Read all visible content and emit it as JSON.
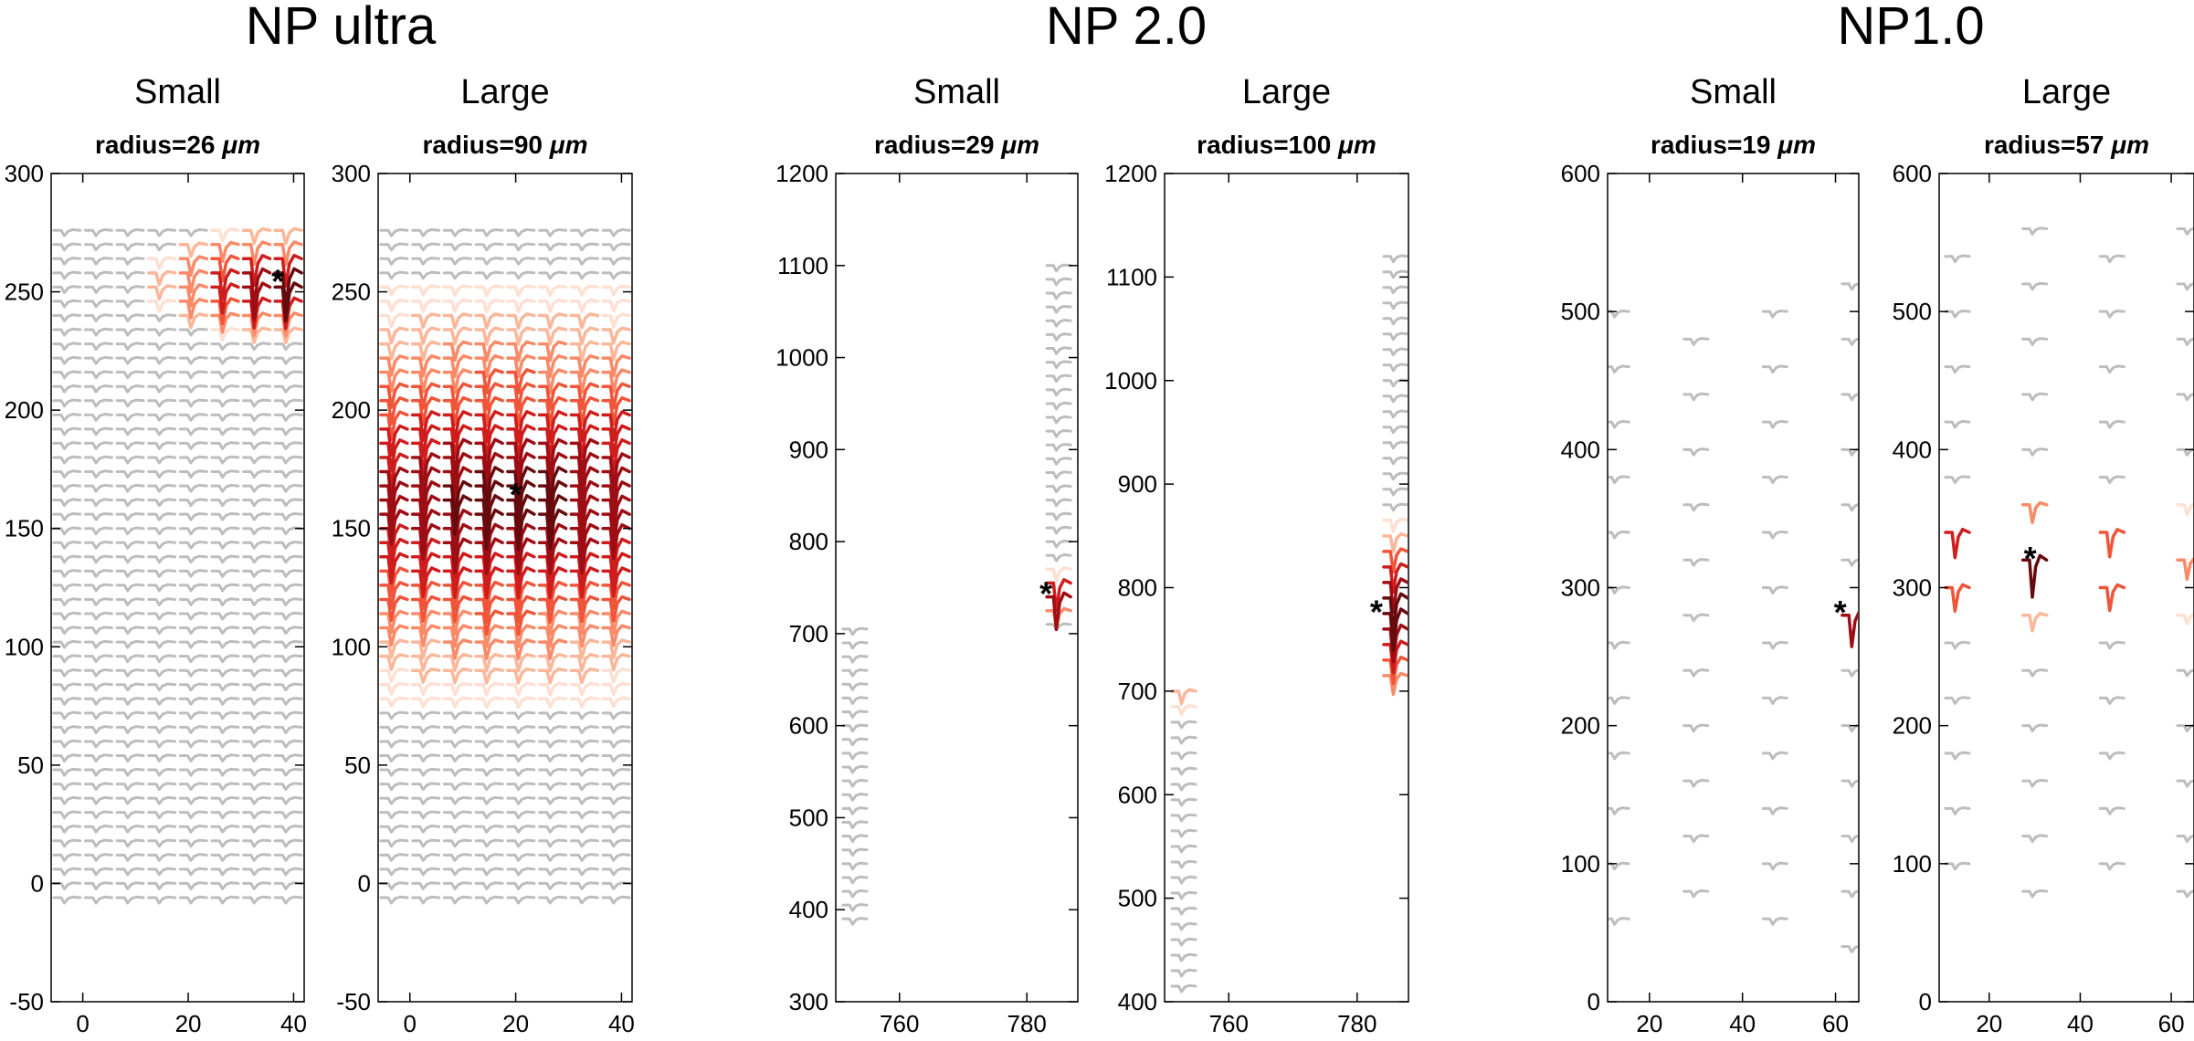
{
  "figure": {
    "groups": [
      {
        "title": "NP ultra"
      },
      {
        "title": "NP 2.0"
      },
      {
        "title": "NP1.0"
      }
    ]
  },
  "colors": {
    "inactive_trace": "#bdbdbd",
    "amplitude_ramp": [
      "#fde0d2",
      "#fcb79b",
      "#fb8a68",
      "#f05539",
      "#cf1d1d",
      "#9e0d14",
      "#670a0d"
    ],
    "axis": "#000000",
    "marker": "#000000"
  },
  "chart_data": [
    {
      "type": "scatter",
      "group": "NP ultra",
      "title": "Small",
      "subtitle": "radius=26",
      "unit": "μm",
      "xlim": [
        -6,
        42
      ],
      "ylim": [
        -50,
        300
      ],
      "xticks": [
        0,
        20,
        40
      ],
      "yticks": [
        -50,
        0,
        50,
        100,
        150,
        200,
        250,
        300
      ],
      "sites": {
        "x": [
          -3,
          3,
          9,
          15,
          21,
          27,
          33,
          39
        ],
        "y_start": -6,
        "y_step": 6,
        "rows": 48
      },
      "source": {
        "x": 37,
        "y": 255
      },
      "radius": 26
    },
    {
      "type": "scatter",
      "group": "NP ultra",
      "title": "Large",
      "subtitle": "radius=90",
      "unit": "μm",
      "xlim": [
        -6,
        42
      ],
      "ylim": [
        -50,
        300
      ],
      "xticks": [
        0,
        20,
        40
      ],
      "yticks": [
        -50,
        0,
        50,
        100,
        150,
        200,
        250,
        300
      ],
      "sites": {
        "x": [
          -3,
          3,
          9,
          15,
          21,
          27,
          33,
          39
        ],
        "y_start": -6,
        "y_step": 6,
        "rows": 48
      },
      "source": {
        "x": 20,
        "y": 165
      },
      "radius": 90
    },
    {
      "type": "scatter",
      "group": "NP 2.0",
      "title": "Small",
      "subtitle": "radius=29",
      "unit": "μm",
      "xlim": [
        750,
        788
      ],
      "ylim": [
        300,
        1200
      ],
      "xticks": [
        760,
        780
      ],
      "yticks": [
        300,
        400,
        500,
        600,
        700,
        800,
        900,
        1000,
        1100,
        1200
      ],
      "blocks": [
        {
          "x": [
            753
          ],
          "y_from": 390,
          "y_to": 705,
          "y_step": 15
        },
        {
          "x": [
            785
          ],
          "y_from": 710,
          "y_to": 1100,
          "y_step": 15
        }
      ],
      "source": {
        "x": 783,
        "y": 745
      },
      "radius": 29
    },
    {
      "type": "scatter",
      "group": "NP 2.0",
      "title": "Large",
      "subtitle": "radius=100",
      "unit": "μm",
      "xlim": [
        750,
        788
      ],
      "ylim": [
        400,
        1200
      ],
      "xticks": [
        760,
        780
      ],
      "yticks": [
        400,
        500,
        600,
        700,
        800,
        900,
        1000,
        1100,
        1200
      ],
      "blocks": [
        {
          "x": [
            753
          ],
          "y_from": 415,
          "y_to": 705,
          "y_step": 15
        },
        {
          "x": [
            786
          ],
          "y_from": 715,
          "y_to": 1130,
          "y_step": 15
        }
      ],
      "source": {
        "x": 783,
        "y": 778
      },
      "radius": 100
    },
    {
      "type": "scatter",
      "group": "NP1.0",
      "title": "Small",
      "subtitle": "radius=19",
      "unit": "μm",
      "xlim": [
        11,
        65
      ],
      "ylim": [
        0,
        600
      ],
      "xticks": [
        20,
        40,
        60
      ],
      "yticks": [
        0,
        100,
        200,
        300,
        400,
        500,
        600
      ],
      "columns": [
        {
          "x": 13,
          "y_start": 60,
          "y_step": 40,
          "count": 12
        },
        {
          "x": 30,
          "y_start": 80,
          "y_step": 40,
          "count": 11
        },
        {
          "x": 47,
          "y_start": 60,
          "y_step": 40,
          "count": 12
        },
        {
          "x": 64,
          "y_start": 40,
          "y_step": 40,
          "count": 13
        }
      ],
      "source": {
        "x": 61,
        "y": 283
      },
      "radius": 19
    },
    {
      "type": "scatter",
      "group": "NP1.0",
      "title": "Large",
      "subtitle": "radius=57",
      "unit": "μm",
      "xlim": [
        9,
        65
      ],
      "ylim": [
        0,
        600
      ],
      "xticks": [
        20,
        40,
        60
      ],
      "yticks": [
        0,
        100,
        200,
        300,
        400,
        500,
        600
      ],
      "columns": [
        {
          "x": 13,
          "y_start": 100,
          "y_step": 40,
          "count": 12
        },
        {
          "x": 30,
          "y_start": 80,
          "y_step": 40,
          "count": 13
        },
        {
          "x": 47,
          "y_start": 100,
          "y_step": 40,
          "count": 12
        },
        {
          "x": 64,
          "y_start": 80,
          "y_step": 40,
          "count": 13
        }
      ],
      "source": {
        "x": 29,
        "y": 322
      },
      "radius": 57
    }
  ]
}
